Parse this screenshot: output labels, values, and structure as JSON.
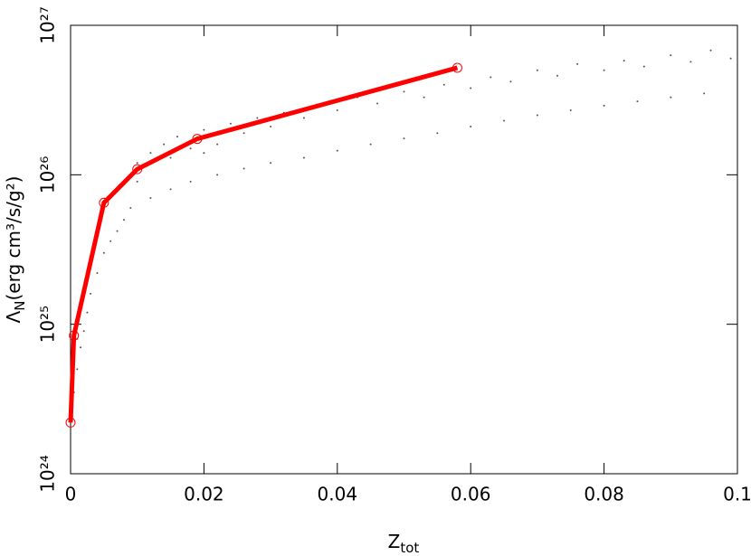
{
  "chart_data": {
    "type": "scatter",
    "xlabel": {
      "text": "Z",
      "sub": "tot"
    },
    "ylabel": {
      "text": "Λ",
      "sub": "N",
      "rest": "(erg cm³/s/g²)"
    },
    "xlim": [
      0,
      0.1
    ],
    "xticks": [
      0,
      0.02,
      0.04,
      0.06,
      0.08,
      0.1
    ],
    "ylim": [
      1e+24,
      1e+27
    ],
    "yticks": [
      {
        "value": 1e+24,
        "label": "10²⁴"
      },
      {
        "value": 1e+25,
        "label": "10²⁵"
      },
      {
        "value": 1e+26,
        "label": "10²⁶"
      },
      {
        "value": 1e+27,
        "label": "10²⁷"
      }
    ],
    "ylog": true,
    "series": [
      {
        "mode": "dots",
        "color": "#555555",
        "x": [
          0.0005,
          0.001,
          0.0015,
          0.002,
          0.0025,
          0.003,
          0.004,
          0.005,
          0.006,
          0.007,
          0.008,
          0.009,
          0.001,
          0.002,
          0.003,
          0.012,
          0.015,
          0.018,
          0.022,
          0.026,
          0.03,
          0.035,
          0.04,
          0.045,
          0.05,
          0.055,
          0.06,
          0.065,
          0.07,
          0.075,
          0.08,
          0.085,
          0.09,
          0.095,
          0.006,
          0.008,
          0.01,
          0.012,
          0.014,
          0.016,
          0.018,
          0.02,
          0.022,
          0.024,
          0.026,
          0.028,
          0.03,
          0.032,
          0.035,
          0.038,
          0.04,
          0.043,
          0.046,
          0.05,
          0.053,
          0.056,
          0.06,
          0.063,
          0.066,
          0.07,
          0.073,
          0.076,
          0.08,
          0.083,
          0.086,
          0.09,
          0.093,
          0.096,
          0.099,
          0.01,
          0.015,
          0.02
        ],
        "values": [
          3.5e+24,
          5e+24,
          7e+24,
          9e+24,
          1.2e+25,
          1.6e+25,
          2.2e+25,
          3e+25,
          3.6e+25,
          4.2e+25,
          5e+25,
          6e+25,
          8e+24,
          1.5e+25,
          2.5e+25,
          7e+25,
          8e+25,
          9e+25,
          1e+26,
          1.1e+26,
          1.2e+26,
          1.3e+26,
          1.45e+26,
          1.6e+26,
          1.75e+26,
          1.9e+26,
          2.1e+26,
          2.3e+26,
          2.5e+26,
          2.7e+26,
          2.9e+26,
          3.1e+26,
          3.3e+26,
          3.5e+26,
          7e+25,
          9e+25,
          1.2e+26,
          1.4e+26,
          1.6e+26,
          1.8e+26,
          1.5e+26,
          2e+26,
          1.6e+26,
          2.2e+26,
          1.9e+26,
          2.4e+26,
          2.1e+26,
          2.6e+26,
          2.4e+26,
          3e+26,
          2.7e+26,
          3.3e+26,
          3e+26,
          3.6e+26,
          3.3e+26,
          4e+26,
          3.8e+26,
          4.5e+26,
          4.2e+26,
          5e+26,
          4.6e+26,
          5.5e+26,
          5e+26,
          5.8e+26,
          5.3e+26,
          6.3e+26,
          5.7e+26,
          6.8e+26,
          6e+26,
          9e+25,
          1.3e+26,
          1.4e+26
        ]
      },
      {
        "mode": "line",
        "color": "#ff0000",
        "x": [
          0,
          0.0005,
          0.005,
          0.01,
          0.019,
          0.058
        ],
        "values": [
          2.2e+24,
          8.4e+24,
          6.5e+25,
          1.09e+26,
          1.74e+26,
          5.2e+26
        ]
      }
    ]
  }
}
